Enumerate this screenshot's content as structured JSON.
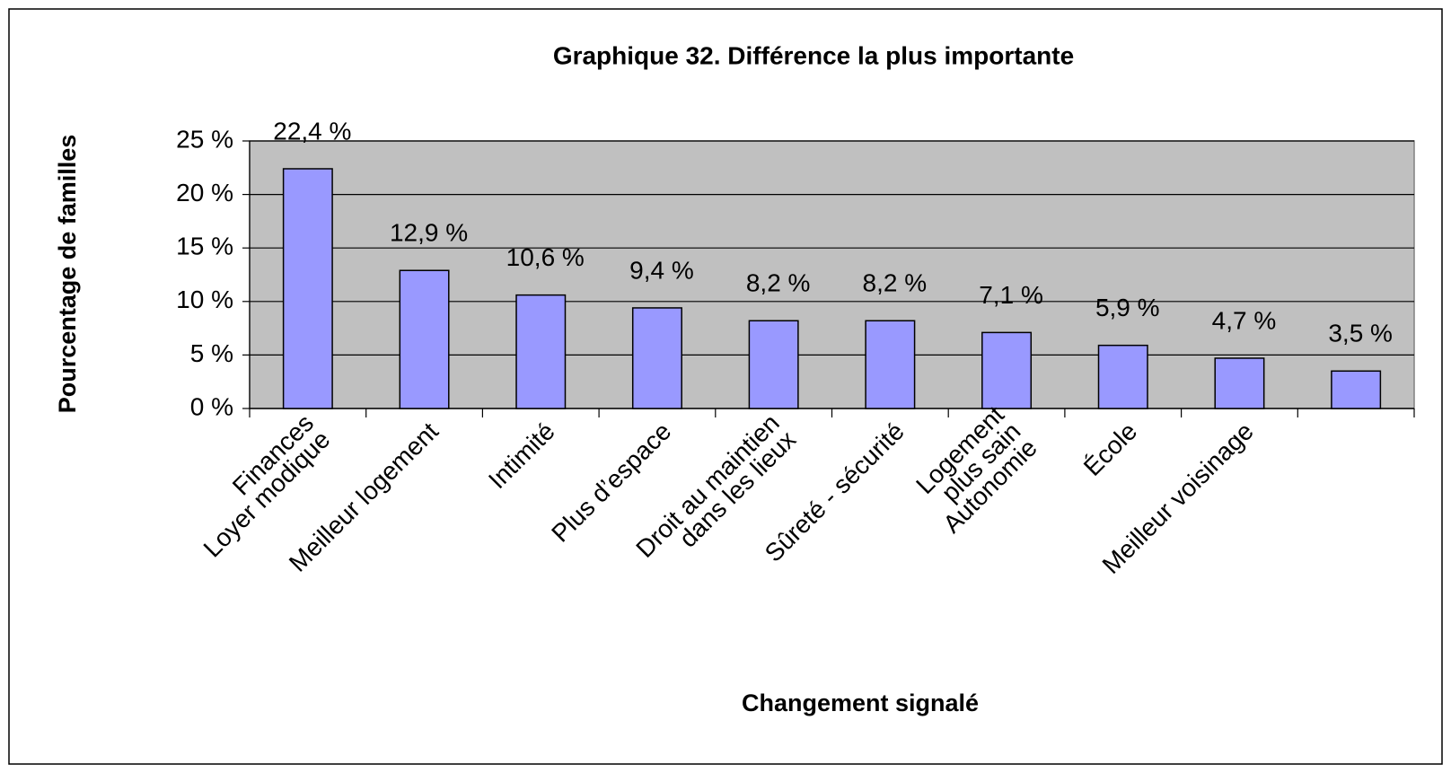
{
  "chart_data": {
    "type": "bar",
    "title": "Graphique 32. Différence la plus importante",
    "x_label": "Changement signalé",
    "y_label": "Pourcentage de familles",
    "categories": [
      [
        "Finances",
        "Loyer modique"
      ],
      [
        "Meilleur logement"
      ],
      [
        "Intimité"
      ],
      [
        "Plus d’espace"
      ],
      [
        "Droit au maintien",
        "dans les lieux"
      ],
      [
        "Sûreté - sécurité"
      ],
      [
        "Logement",
        "plus sain",
        "Autonomie"
      ],
      [
        "École"
      ],
      [
        "Meilleur voisinage"
      ],
      null
    ],
    "values": [
      22.4,
      12.9,
      10.6,
      9.4,
      8.2,
      8.2,
      7.1,
      5.9,
      4.7,
      3.5
    ],
    "value_labels": [
      "22,4 %",
      "12,9 %",
      "10,6 %",
      "9,4 %",
      "8,2 %",
      "8,2 %",
      "7,1 %",
      "5,9 %",
      "4,7 %",
      "3,5 %"
    ],
    "color": "#9999ff",
    "plot_background": "#c0c0c0",
    "ylim": [
      0,
      25
    ],
    "yticks": [
      {
        "value": 0,
        "label": "0 %"
      },
      {
        "value": 5,
        "label": "5 %"
      },
      {
        "value": 10,
        "label": "10 %"
      },
      {
        "value": 15,
        "label": "15 %"
      },
      {
        "value": 20,
        "label": "20 %"
      },
      {
        "value": 25,
        "label": "25 %"
      }
    ],
    "grid": true
  }
}
